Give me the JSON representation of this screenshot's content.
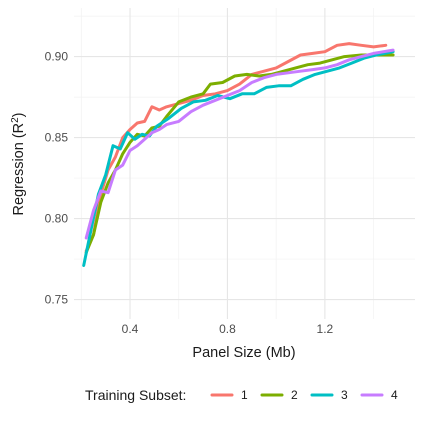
{
  "chart_data": {
    "type": "line",
    "title": "",
    "xlabel": "Panel Size (Mb)",
    "ylabel_main": "Regression (R",
    "ylabel_sup": "2",
    "ylabel_end": ")",
    "xlim": [
      0.17,
      1.57
    ],
    "ylim": [
      0.738,
      0.93
    ],
    "xticks": [
      0.4,
      0.8,
      1.2
    ],
    "xtick_labels": [
      "0.4",
      "0.8",
      "1.2"
    ],
    "yticks": [
      0.75,
      0.8,
      0.85,
      0.9
    ],
    "ytick_labels": [
      "0.75",
      "0.80",
      "0.85",
      "0.90"
    ],
    "grid": true,
    "legend": {
      "title": "Training Subset:",
      "position": "bottom"
    },
    "series": [
      {
        "name": "1",
        "color": "#F8766D",
        "points": [
          [
            0.22,
            0.78
          ],
          [
            0.25,
            0.79
          ],
          [
            0.28,
            0.815
          ],
          [
            0.31,
            0.83
          ],
          [
            0.34,
            0.838
          ],
          [
            0.37,
            0.85
          ],
          [
            0.4,
            0.855
          ],
          [
            0.43,
            0.859
          ],
          [
            0.46,
            0.86
          ],
          [
            0.49,
            0.869
          ],
          [
            0.52,
            0.867
          ],
          [
            0.55,
            0.869
          ],
          [
            0.6,
            0.871
          ],
          [
            0.65,
            0.873
          ],
          [
            0.7,
            0.876
          ],
          [
            0.75,
            0.877
          ],
          [
            0.8,
            0.879
          ],
          [
            0.85,
            0.883
          ],
          [
            0.9,
            0.889
          ],
          [
            0.95,
            0.891
          ],
          [
            1.0,
            0.893
          ],
          [
            1.05,
            0.897
          ],
          [
            1.1,
            0.901
          ],
          [
            1.15,
            0.902
          ],
          [
            1.2,
            0.903
          ],
          [
            1.25,
            0.907
          ],
          [
            1.3,
            0.908
          ],
          [
            1.35,
            0.907
          ],
          [
            1.4,
            0.906
          ],
          [
            1.45,
            0.907
          ]
        ]
      },
      {
        "name": "2",
        "color": "#7CAE00",
        "points": [
          [
            0.22,
            0.779
          ],
          [
            0.25,
            0.79
          ],
          [
            0.28,
            0.81
          ],
          [
            0.31,
            0.822
          ],
          [
            0.34,
            0.83
          ],
          [
            0.37,
            0.84
          ],
          [
            0.4,
            0.847
          ],
          [
            0.43,
            0.852
          ],
          [
            0.46,
            0.851
          ],
          [
            0.49,
            0.856
          ],
          [
            0.52,
            0.857
          ],
          [
            0.55,
            0.863
          ],
          [
            0.6,
            0.872
          ],
          [
            0.65,
            0.875
          ],
          [
            0.7,
            0.877
          ],
          [
            0.73,
            0.883
          ],
          [
            0.78,
            0.884
          ],
          [
            0.83,
            0.888
          ],
          [
            0.88,
            0.889
          ],
          [
            0.93,
            0.888
          ],
          [
            0.98,
            0.889
          ],
          [
            1.03,
            0.891
          ],
          [
            1.08,
            0.893
          ],
          [
            1.13,
            0.895
          ],
          [
            1.18,
            0.896
          ],
          [
            1.23,
            0.898
          ],
          [
            1.28,
            0.9
          ],
          [
            1.35,
            0.901
          ],
          [
            1.42,
            0.901
          ],
          [
            1.48,
            0.901
          ]
        ]
      },
      {
        "name": "3",
        "color": "#00BFC4",
        "points": [
          [
            0.21,
            0.771
          ],
          [
            0.24,
            0.793
          ],
          [
            0.27,
            0.815
          ],
          [
            0.3,
            0.827
          ],
          [
            0.33,
            0.845
          ],
          [
            0.36,
            0.843
          ],
          [
            0.39,
            0.853
          ],
          [
            0.42,
            0.849
          ],
          [
            0.45,
            0.852
          ],
          [
            0.48,
            0.851
          ],
          [
            0.51,
            0.857
          ],
          [
            0.56,
            0.862
          ],
          [
            0.61,
            0.868
          ],
          [
            0.66,
            0.872
          ],
          [
            0.71,
            0.873
          ],
          [
            0.76,
            0.876
          ],
          [
            0.81,
            0.874
          ],
          [
            0.86,
            0.877
          ],
          [
            0.91,
            0.877
          ],
          [
            0.96,
            0.881
          ],
          [
            1.01,
            0.882
          ],
          [
            1.06,
            0.882
          ],
          [
            1.11,
            0.886
          ],
          [
            1.16,
            0.889
          ],
          [
            1.21,
            0.891
          ],
          [
            1.26,
            0.893
          ],
          [
            1.31,
            0.896
          ],
          [
            1.36,
            0.899
          ],
          [
            1.41,
            0.901
          ],
          [
            1.48,
            0.903
          ]
        ]
      },
      {
        "name": "4",
        "color": "#C77CFF",
        "points": [
          [
            0.22,
            0.788
          ],
          [
            0.25,
            0.805
          ],
          [
            0.28,
            0.817
          ],
          [
            0.31,
            0.816
          ],
          [
            0.34,
            0.83
          ],
          [
            0.37,
            0.833
          ],
          [
            0.4,
            0.842
          ],
          [
            0.43,
            0.845
          ],
          [
            0.46,
            0.849
          ],
          [
            0.49,
            0.853
          ],
          [
            0.52,
            0.855
          ],
          [
            0.55,
            0.858
          ],
          [
            0.6,
            0.86
          ],
          [
            0.65,
            0.866
          ],
          [
            0.7,
            0.87
          ],
          [
            0.75,
            0.873
          ],
          [
            0.8,
            0.876
          ],
          [
            0.85,
            0.879
          ],
          [
            0.9,
            0.884
          ],
          [
            0.95,
            0.887
          ],
          [
            1.0,
            0.889
          ],
          [
            1.05,
            0.89
          ],
          [
            1.1,
            0.891
          ],
          [
            1.15,
            0.892
          ],
          [
            1.2,
            0.893
          ],
          [
            1.25,
            0.895
          ],
          [
            1.3,
            0.898
          ],
          [
            1.35,
            0.9
          ],
          [
            1.4,
            0.902
          ],
          [
            1.48,
            0.904
          ]
        ]
      }
    ]
  }
}
